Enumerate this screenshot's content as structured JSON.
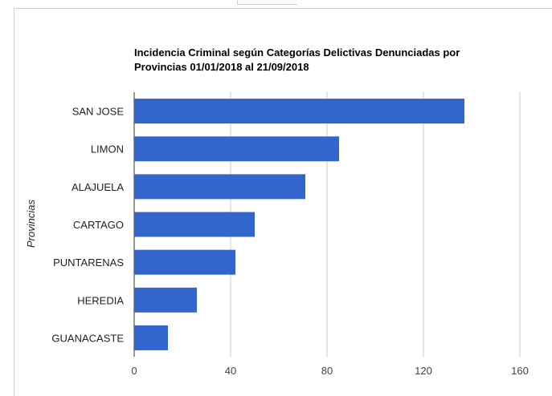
{
  "chart_data": {
    "type": "bar",
    "orientation": "horizontal",
    "title_line1": "Incidencia Criminal según Categorías Delictivas Denunciadas por",
    "title_line2": "Provincias 01/01/2018 al 21/09/2018",
    "ylabel": "Provincias",
    "xlabel": "",
    "categories": [
      "SAN JOSE",
      "LIMON",
      "ALAJUELA",
      "CARTAGO",
      "PUNTARENAS",
      "HEREDIA",
      "GUANACASTE"
    ],
    "values": [
      137,
      85,
      71,
      50,
      42,
      26,
      14
    ],
    "xlim": [
      0,
      160
    ],
    "xticks": [
      0,
      40,
      80,
      120,
      160
    ],
    "grid": true,
    "bar_color": "#3366cc"
  }
}
